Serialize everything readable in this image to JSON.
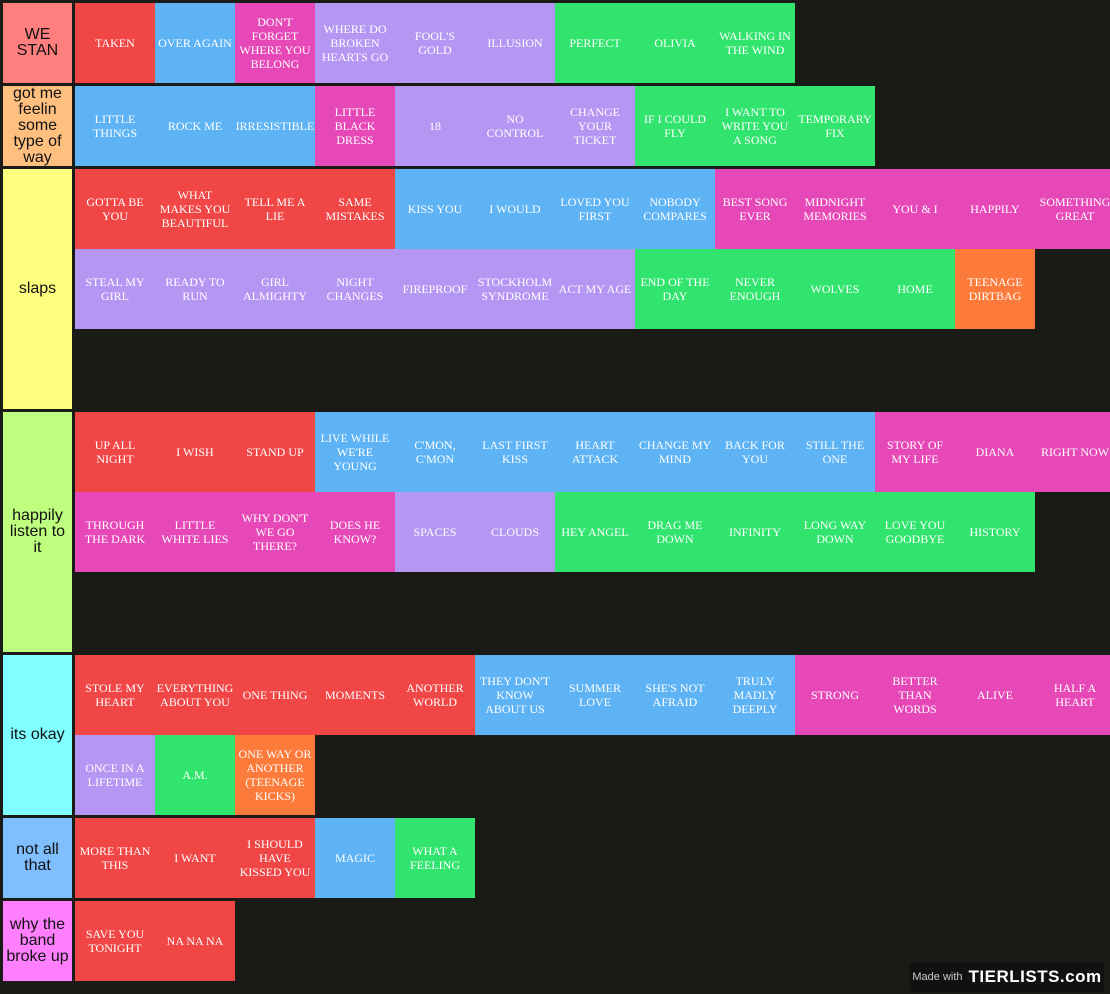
{
  "colors": {
    "red": "#f04646",
    "blue": "#5eb3f5",
    "pink": "#e748b7",
    "purple": "#b596f3",
    "green": "#31e46d",
    "orange": "#fd7b3a",
    "background": "#1a1a17"
  },
  "tiers": [
    {
      "label": "WE STAN",
      "color": "#ff7f7f",
      "items": [
        {
          "text": "TAKEN",
          "color": "red"
        },
        {
          "text": "OVER AGAIN",
          "color": "blue"
        },
        {
          "text": "DON'T FORGET WHERE YOU BELONG",
          "color": "pink"
        },
        {
          "text": "WHERE DO BROKEN HEARTS GO",
          "color": "purple"
        },
        {
          "text": "FOOL'S GOLD",
          "color": "purple"
        },
        {
          "text": "ILLUSION",
          "color": "purple"
        },
        {
          "text": "PERFECT",
          "color": "green"
        },
        {
          "text": "OLIVIA",
          "color": "green"
        },
        {
          "text": "WALKING IN THE WIND",
          "color": "green"
        }
      ]
    },
    {
      "label": "got me feelin some type of way",
      "color": "#ffbf7f",
      "items": [
        {
          "text": "LITTLE THINGS",
          "color": "blue"
        },
        {
          "text": "ROCK ME",
          "color": "blue"
        },
        {
          "text": "IRRESISTIBLE",
          "color": "blue"
        },
        {
          "text": "LITTLE BLACK DRESS",
          "color": "pink"
        },
        {
          "text": "18",
          "color": "purple"
        },
        {
          "text": "NO CONTROL",
          "color": "purple"
        },
        {
          "text": "CHANGE YOUR TICKET",
          "color": "purple"
        },
        {
          "text": "IF I COULD FLY",
          "color": "green"
        },
        {
          "text": "I WANT TO WRITE YOU A SONG",
          "color": "green"
        },
        {
          "text": "TEMPORARY FIX",
          "color": "green"
        }
      ]
    },
    {
      "label": "slaps",
      "color": "#ffff7f",
      "items": [
        {
          "text": "GOTTA BE YOU",
          "color": "red"
        },
        {
          "text": "WHAT MAKES YOU BEAUTIFUL",
          "color": "red"
        },
        {
          "text": "TELL ME A LIE",
          "color": "red"
        },
        {
          "text": "SAME MISTAKES",
          "color": "red"
        },
        {
          "text": "KISS YOU",
          "color": "blue"
        },
        {
          "text": "I WOULD",
          "color": "blue"
        },
        {
          "text": "LOVED YOU FIRST",
          "color": "blue"
        },
        {
          "text": "NOBODY COMPARES",
          "color": "blue"
        },
        {
          "text": "BEST SONG EVER",
          "color": "pink"
        },
        {
          "text": "MIDNIGHT MEMORIES",
          "color": "pink"
        },
        {
          "text": "YOU & I",
          "color": "pink"
        },
        {
          "text": "HAPPILY",
          "color": "pink"
        },
        {
          "text": "SOMETHING GREAT",
          "color": "pink"
        },
        {
          "text": "STEAL MY GIRL",
          "color": "purple"
        },
        {
          "text": "READY TO RUN",
          "color": "purple"
        },
        {
          "text": "GIRL ALMIGHTY",
          "color": "purple"
        },
        {
          "text": "NIGHT CHANGES",
          "color": "purple"
        },
        {
          "text": "FIREPROOF",
          "color": "purple"
        },
        {
          "text": "STOCKHOLM SYNDROME",
          "color": "purple"
        },
        {
          "text": "ACT MY AGE",
          "color": "purple"
        },
        {
          "text": "END OF THE DAY",
          "color": "green"
        },
        {
          "text": "NEVER ENOUGH",
          "color": "green"
        },
        {
          "text": "WOLVES",
          "color": "green"
        },
        {
          "text": "HOME",
          "color": "green"
        },
        {
          "text": "TEENAGE DIRTBAG",
          "color": "orange"
        }
      ]
    },
    {
      "label": "happily listen to it",
      "color": "#bfff7f",
      "items": [
        {
          "text": "UP ALL NIGHT",
          "color": "red"
        },
        {
          "text": "I WISH",
          "color": "red"
        },
        {
          "text": "STAND UP",
          "color": "red"
        },
        {
          "text": "LIVE WHILE WE'RE YOUNG",
          "color": "blue"
        },
        {
          "text": "C'MON, C'MON",
          "color": "blue"
        },
        {
          "text": "LAST FIRST KISS",
          "color": "blue"
        },
        {
          "text": "HEART ATTACK",
          "color": "blue"
        },
        {
          "text": "CHANGE MY MIND",
          "color": "blue"
        },
        {
          "text": "BACK FOR YOU",
          "color": "blue"
        },
        {
          "text": "STILL THE ONE",
          "color": "blue"
        },
        {
          "text": "STORY OF MY LIFE",
          "color": "pink"
        },
        {
          "text": "DIANA",
          "color": "pink"
        },
        {
          "text": "RIGHT NOW",
          "color": "pink"
        },
        {
          "text": "THROUGH THE DARK",
          "color": "pink"
        },
        {
          "text": "LITTLE WHITE LIES",
          "color": "pink"
        },
        {
          "text": "WHY DON'T WE GO THERE?",
          "color": "pink"
        },
        {
          "text": "DOES HE KNOW?",
          "color": "pink"
        },
        {
          "text": "SPACES",
          "color": "purple"
        },
        {
          "text": "CLOUDS",
          "color": "purple"
        },
        {
          "text": "HEY ANGEL",
          "color": "green"
        },
        {
          "text": "DRAG ME DOWN",
          "color": "green"
        },
        {
          "text": "INFINITY",
          "color": "green"
        },
        {
          "text": "LONG WAY DOWN",
          "color": "green"
        },
        {
          "text": "LOVE YOU GOODBYE",
          "color": "green"
        },
        {
          "text": "HISTORY",
          "color": "green"
        }
      ]
    },
    {
      "label": "its okay",
      "color": "#7fffff",
      "items": [
        {
          "text": "STOLE MY HEART",
          "color": "red"
        },
        {
          "text": "EVERYTHING ABOUT YOU",
          "color": "red"
        },
        {
          "text": "ONE THING",
          "color": "red"
        },
        {
          "text": "MOMENTS",
          "color": "red"
        },
        {
          "text": "ANOTHER WORLD",
          "color": "red"
        },
        {
          "text": "THEY DON'T KNOW ABOUT US",
          "color": "blue"
        },
        {
          "text": "SUMMER LOVE",
          "color": "blue"
        },
        {
          "text": "SHE'S NOT AFRAID",
          "color": "blue"
        },
        {
          "text": "TRULY MADLY DEEPLY",
          "color": "blue"
        },
        {
          "text": "STRONG",
          "color": "pink"
        },
        {
          "text": "BETTER THAN WORDS",
          "color": "pink"
        },
        {
          "text": "ALIVE",
          "color": "pink"
        },
        {
          "text": "HALF A HEART",
          "color": "pink"
        },
        {
          "text": "ONCE IN A LIFETIME",
          "color": "purple"
        },
        {
          "text": "A.M.",
          "color": "green"
        },
        {
          "text": "ONE WAY OR ANOTHER (TEENAGE KICKS)",
          "color": "orange"
        }
      ]
    },
    {
      "label": "not all that",
      "color": "#7fbfff",
      "items": [
        {
          "text": "MORE THAN THIS",
          "color": "red"
        },
        {
          "text": "I WANT",
          "color": "red"
        },
        {
          "text": "I SHOULD HAVE KISSED YOU",
          "color": "red"
        },
        {
          "text": "MAGIC",
          "color": "blue"
        },
        {
          "text": "WHAT A FEELING",
          "color": "green"
        }
      ]
    },
    {
      "label": "why the band broke up",
      "color": "#ff7fff",
      "items": [
        {
          "text": "SAVE YOU TONIGHT",
          "color": "red"
        },
        {
          "text": "NA NA NA",
          "color": "red"
        }
      ]
    }
  ],
  "watermark": {
    "made_with": "Made with",
    "logo": "TIERLISTS.com"
  }
}
